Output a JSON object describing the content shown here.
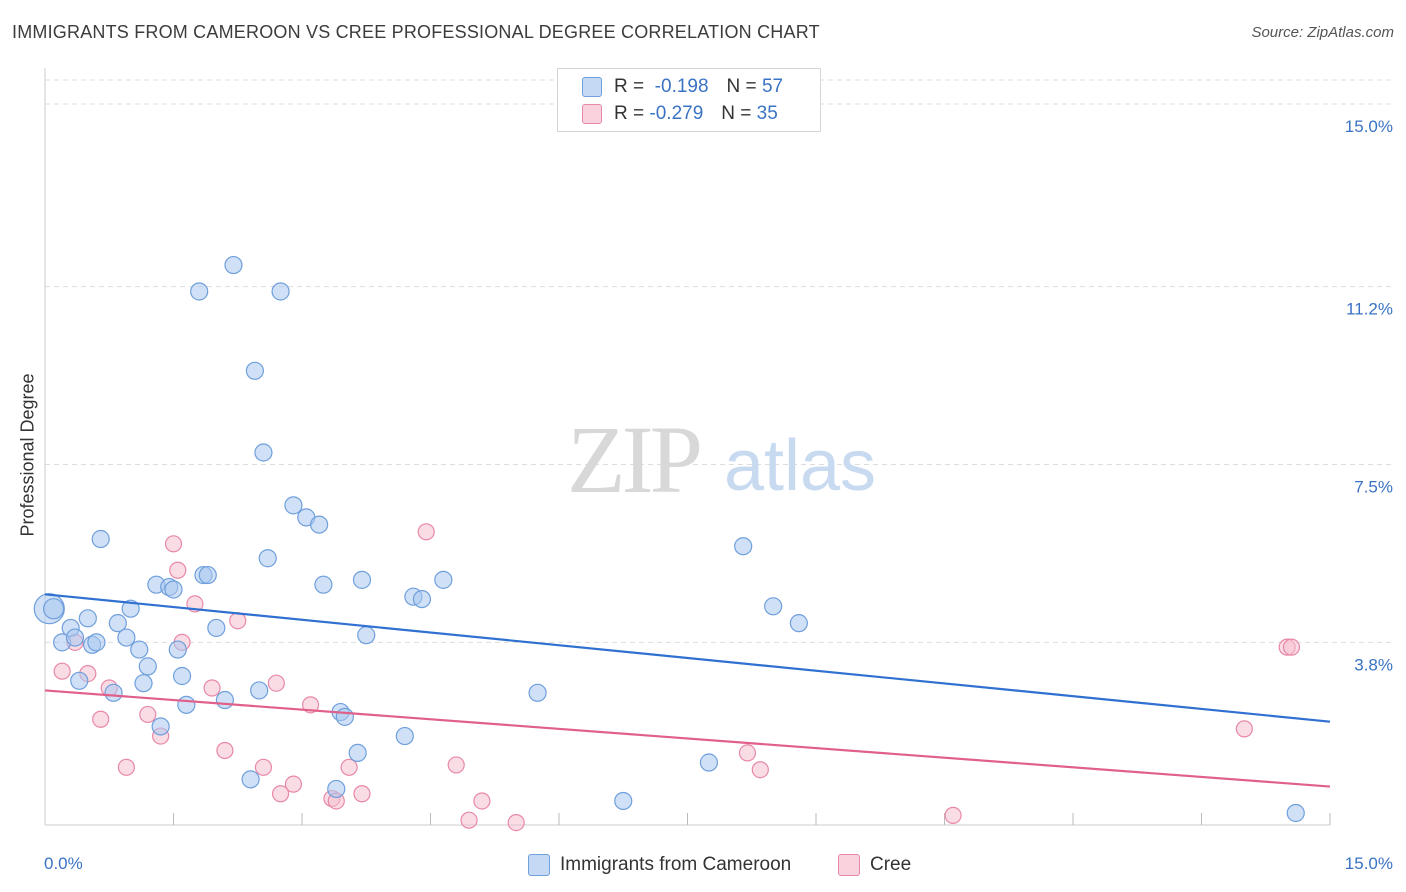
{
  "title": "IMMIGRANTS FROM CAMEROON VS CREE PROFESSIONAL DEGREE CORRELATION CHART",
  "source": "Source: ZipAtlas.com",
  "watermark": {
    "zip": "ZIP",
    "atlas": "atlas"
  },
  "legend": {
    "rows": [
      {
        "r_label": "R =",
        "r_value": "-0.198",
        "n_label": "N =",
        "n_value": "57"
      },
      {
        "r_label": "R =",
        "r_value": "-0.279",
        "n_label": "N =",
        "n_value": "35"
      }
    ]
  },
  "colors": {
    "series1_fill": "#aac8f0",
    "series1_stroke": "#6f9fdc",
    "series1_line": "#3070d0",
    "series2_fill": "#f6c0d0",
    "series2_stroke": "#e888a8",
    "series2_line": "#e0608a",
    "tick_text": "#3a73c4",
    "grid": "#dddddd"
  },
  "chart_data": {
    "type": "scatter",
    "title": "IMMIGRANTS FROM CAMEROON VS CREE PROFESSIONAL DEGREE CORRELATION CHART",
    "xlabel": "",
    "ylabel": "Professional Degree",
    "xlim": [
      0,
      15
    ],
    "ylim": [
      0,
      15.5
    ],
    "x_tick_labels": [
      "0.0%",
      "15.0%"
    ],
    "y_ticks": [
      3.8,
      7.5,
      11.2,
      15.0
    ],
    "y_tick_labels": [
      "3.8%",
      "7.5%",
      "11.2%",
      "15.0%"
    ],
    "grid": "horizontal dashed",
    "legend_position": "top-center",
    "series": [
      {
        "name": "Immigrants from Cameroon",
        "r": -0.198,
        "n": 57,
        "trend": {
          "x": [
            0,
            15
          ],
          "y": [
            4.8,
            2.15
          ]
        },
        "points": [
          [
            0.05,
            4.5
          ],
          [
            0.1,
            4.5
          ],
          [
            0.2,
            3.8
          ],
          [
            0.3,
            4.1
          ],
          [
            0.35,
            3.9
          ],
          [
            0.4,
            3.0
          ],
          [
            0.5,
            4.3
          ],
          [
            0.55,
            3.75
          ],
          [
            0.6,
            3.8
          ],
          [
            0.65,
            5.95
          ],
          [
            0.8,
            2.75
          ],
          [
            0.85,
            4.2
          ],
          [
            0.95,
            3.9
          ],
          [
            1.0,
            4.5
          ],
          [
            1.1,
            3.65
          ],
          [
            1.15,
            2.95
          ],
          [
            1.2,
            3.3
          ],
          [
            1.3,
            5.0
          ],
          [
            1.35,
            2.05
          ],
          [
            1.45,
            4.95
          ],
          [
            1.5,
            4.9
          ],
          [
            1.55,
            3.65
          ],
          [
            1.6,
            3.1
          ],
          [
            1.65,
            2.5
          ],
          [
            1.8,
            11.1
          ],
          [
            1.85,
            5.2
          ],
          [
            1.9,
            5.2
          ],
          [
            2.0,
            4.1
          ],
          [
            2.1,
            2.6
          ],
          [
            2.2,
            11.65
          ],
          [
            2.4,
            0.95
          ],
          [
            2.45,
            9.45
          ],
          [
            2.5,
            2.8
          ],
          [
            2.55,
            7.75
          ],
          [
            2.6,
            5.55
          ],
          [
            2.75,
            11.1
          ],
          [
            2.9,
            6.65
          ],
          [
            3.05,
            6.4
          ],
          [
            3.2,
            6.25
          ],
          [
            3.25,
            5.0
          ],
          [
            3.4,
            0.75
          ],
          [
            3.45,
            2.35
          ],
          [
            3.5,
            2.25
          ],
          [
            3.65,
            1.5
          ],
          [
            3.7,
            5.1
          ],
          [
            3.75,
            3.95
          ],
          [
            4.2,
            1.85
          ],
          [
            4.3,
            4.75
          ],
          [
            4.4,
            4.7
          ],
          [
            4.65,
            5.1
          ],
          [
            5.75,
            2.75
          ],
          [
            6.75,
            0.5
          ],
          [
            7.75,
            1.3
          ],
          [
            8.15,
            5.8
          ],
          [
            8.5,
            4.55
          ],
          [
            8.8,
            4.2
          ],
          [
            14.6,
            0.25
          ]
        ]
      },
      {
        "name": "Cree",
        "r": -0.279,
        "n": 35,
        "trend": {
          "x": [
            0,
            15
          ],
          "y": [
            2.8,
            0.8
          ]
        },
        "points": [
          [
            0.2,
            3.2
          ],
          [
            0.35,
            3.8
          ],
          [
            0.5,
            3.15
          ],
          [
            0.65,
            2.2
          ],
          [
            0.75,
            2.85
          ],
          [
            0.95,
            1.2
          ],
          [
            1.2,
            2.3
          ],
          [
            1.35,
            1.85
          ],
          [
            1.5,
            5.85
          ],
          [
            1.55,
            5.3
          ],
          [
            1.6,
            3.8
          ],
          [
            1.75,
            4.6
          ],
          [
            1.95,
            2.85
          ],
          [
            2.1,
            1.55
          ],
          [
            2.25,
            4.25
          ],
          [
            2.55,
            1.2
          ],
          [
            2.7,
            2.95
          ],
          [
            2.75,
            0.65
          ],
          [
            2.9,
            0.85
          ],
          [
            3.1,
            2.5
          ],
          [
            3.35,
            0.55
          ],
          [
            3.4,
            0.5
          ],
          [
            3.55,
            1.2
          ],
          [
            3.7,
            0.65
          ],
          [
            4.45,
            6.1
          ],
          [
            4.8,
            1.25
          ],
          [
            4.95,
            0.1
          ],
          [
            5.1,
            0.5
          ],
          [
            5.5,
            0.05
          ],
          [
            8.2,
            1.5
          ],
          [
            8.35,
            1.15
          ],
          [
            10.6,
            0.2
          ],
          [
            14.0,
            2.0
          ],
          [
            14.5,
            3.7
          ],
          [
            14.55,
            3.7
          ]
        ]
      }
    ]
  },
  "bottom_legend": [
    {
      "label": "Immigrants from Cameroon"
    },
    {
      "label": "Cree"
    }
  ]
}
